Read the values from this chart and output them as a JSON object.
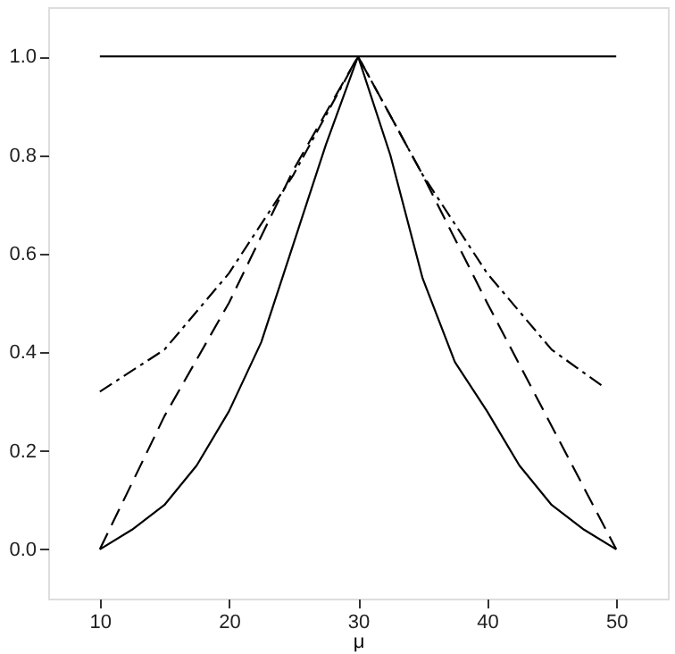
{
  "chart_data": {
    "type": "line",
    "xlabel": "μ",
    "xlim": [
      6,
      54
    ],
    "ylim": [
      -0.1,
      1.1
    ],
    "xticks": [
      10,
      20,
      30,
      40,
      50
    ],
    "yticks": [
      {
        "value": 0,
        "label": "0.0"
      },
      0.2,
      0.4,
      0.6,
      0.8,
      {
        "value": 1,
        "label": "1.0"
      }
    ],
    "grid": false,
    "marker": "none",
    "series": [
      {
        "color": "#000000",
        "line_style": "solid",
        "x": [
          10,
          50
        ],
        "values": [
          1,
          1
        ]
      },
      {
        "color": "#000000",
        "line_style": "solid",
        "x": [
          10,
          12.5,
          15,
          17.5,
          20,
          22.5,
          25,
          27.5,
          30,
          32.5,
          35,
          37.5,
          40,
          42.5,
          45,
          47.5,
          50
        ],
        "values": [
          0,
          0.04,
          0.09,
          0.17,
          0.28,
          0.42,
          0.62,
          0.82,
          1,
          0.8,
          0.55,
          0.38,
          0.28,
          0.17,
          0.09,
          0.04,
          0
        ]
      },
      {
        "color": "#000000",
        "line_style": "dashed",
        "x": [
          10,
          15,
          20,
          25,
          30,
          35,
          40,
          45,
          50
        ],
        "values": [
          0,
          0.27,
          0.5,
          0.77,
          1,
          0.76,
          0.5,
          0.25,
          0
        ]
      },
      {
        "color": "#000000",
        "line_style": "dashdot",
        "x": [
          10,
          15,
          20,
          25,
          30,
          35,
          40,
          45,
          49
        ],
        "values": [
          0.32,
          0.405,
          0.56,
          0.76,
          1,
          0.76,
          0.56,
          0.405,
          0.33
        ]
      }
    ]
  }
}
